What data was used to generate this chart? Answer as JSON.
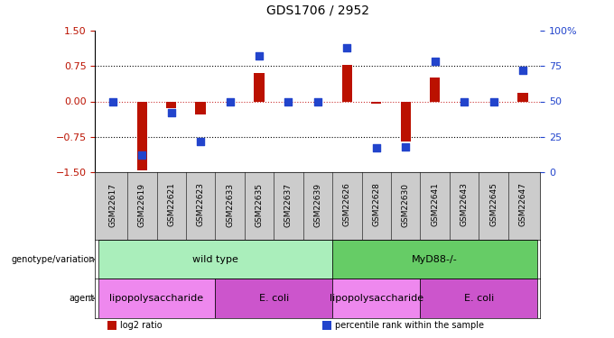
{
  "title": "GDS1706 / 2952",
  "samples": [
    "GSM22617",
    "GSM22619",
    "GSM22621",
    "GSM22623",
    "GSM22633",
    "GSM22635",
    "GSM22637",
    "GSM22639",
    "GSM22626",
    "GSM22628",
    "GSM22630",
    "GSM22641",
    "GSM22643",
    "GSM22645",
    "GSM22647"
  ],
  "log2_ratio": [
    0.0,
    -1.45,
    -0.15,
    -0.28,
    0.0,
    0.6,
    0.0,
    0.0,
    0.78,
    -0.05,
    -0.85,
    0.5,
    0.0,
    0.0,
    0.18
  ],
  "percentile": [
    50,
    12,
    42,
    22,
    50,
    82,
    50,
    50,
    88,
    17,
    18,
    78,
    50,
    50,
    72
  ],
  "ylim": [
    -1.5,
    1.5
  ],
  "yticks_left": [
    -1.5,
    -0.75,
    0,
    0.75,
    1.5
  ],
  "yticks_right_labels": [
    "0",
    "25",
    "50",
    "75",
    "100%"
  ],
  "hlines_black": [
    0.75,
    -0.75
  ],
  "bar_color": "#bb1100",
  "dot_color": "#2244cc",
  "bg_color": "#ffffff",
  "plot_bg": "#ffffff",
  "genotype_groups": [
    {
      "label": "wild type",
      "start": 0,
      "end": 8,
      "color": "#aaeebb"
    },
    {
      "label": "MyD88-/-",
      "start": 8,
      "end": 15,
      "color": "#66cc66"
    }
  ],
  "agent_groups": [
    {
      "label": "lipopolysaccharide",
      "start": 0,
      "end": 4,
      "color": "#ee88ee"
    },
    {
      "label": "E. coli",
      "start": 4,
      "end": 8,
      "color": "#cc55cc"
    },
    {
      "label": "lipopolysaccharide",
      "start": 8,
      "end": 11,
      "color": "#ee88ee"
    },
    {
      "label": "E. coli",
      "start": 11,
      "end": 15,
      "color": "#cc55cc"
    }
  ],
  "legend_items": [
    {
      "label": "log2 ratio",
      "color": "#bb1100"
    },
    {
      "label": "percentile rank within the sample",
      "color": "#2244cc"
    }
  ],
  "row_labels": [
    "genotype/variation",
    "agent"
  ],
  "bar_width": 0.35,
  "dot_size": 40
}
